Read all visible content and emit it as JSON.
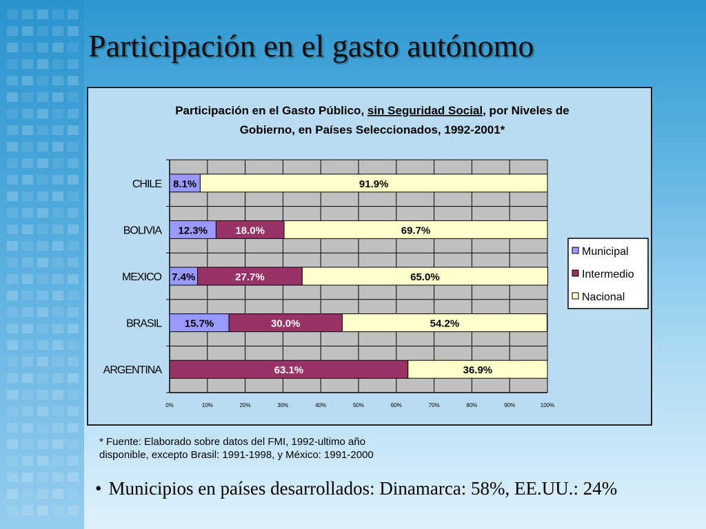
{
  "slide": {
    "title": "Participación en el gasto autónomo",
    "footnote_line1": "* Fuente: Elaborado sobre datos del FMI, 1992-ultimo año",
    "footnote_line2": "disponible, excepto Brasil: 1991-1998, y México: 1991-2000",
    "bullet": "Municipios en países desarrollados: Dinamarca: 58%, EE.UU.: 24%"
  },
  "chart_data": {
    "type": "bar",
    "orientation": "horizontal",
    "stacked": "percent",
    "title_line1_pre": "Participación en el Gasto Público, ",
    "title_line1_underlined": "sin Seguridad Social",
    "title_line1_post": ", por Niveles de",
    "title_line2": "Gobierno, en Países Seleccionados, 1992-2001*",
    "categories": [
      "CHILE",
      "BOLIVIA",
      "MEXICO",
      "BRASIL",
      "ARGENTINA"
    ],
    "series": [
      {
        "name": "Municipal",
        "color": "#9999ff",
        "values": [
          8.1,
          12.3,
          7.4,
          15.7,
          0
        ],
        "labels": [
          "8.1%",
          "12.3%",
          "7.4%",
          "15.7%",
          ""
        ]
      },
      {
        "name": "Intermedio",
        "color": "#993366",
        "values": [
          0,
          18.0,
          27.7,
          30.0,
          63.1
        ],
        "labels": [
          "",
          "18.0%",
          "27.7%",
          "30.0%",
          "63.1%"
        ]
      },
      {
        "name": "Nacional",
        "color": "#ffffcc",
        "values": [
          91.9,
          69.7,
          65.0,
          54.2,
          36.9
        ],
        "labels": [
          "91.9%",
          "69.7%",
          "65.0%",
          "54.2%",
          "36.9%"
        ]
      }
    ],
    "x_ticks": [
      "0%",
      "10%",
      "20%",
      "30%",
      "40%",
      "50%",
      "60%",
      "70%",
      "80%",
      "90%",
      "100%"
    ],
    "xlim": [
      0,
      100
    ],
    "grid": true,
    "legend_position": "right"
  }
}
